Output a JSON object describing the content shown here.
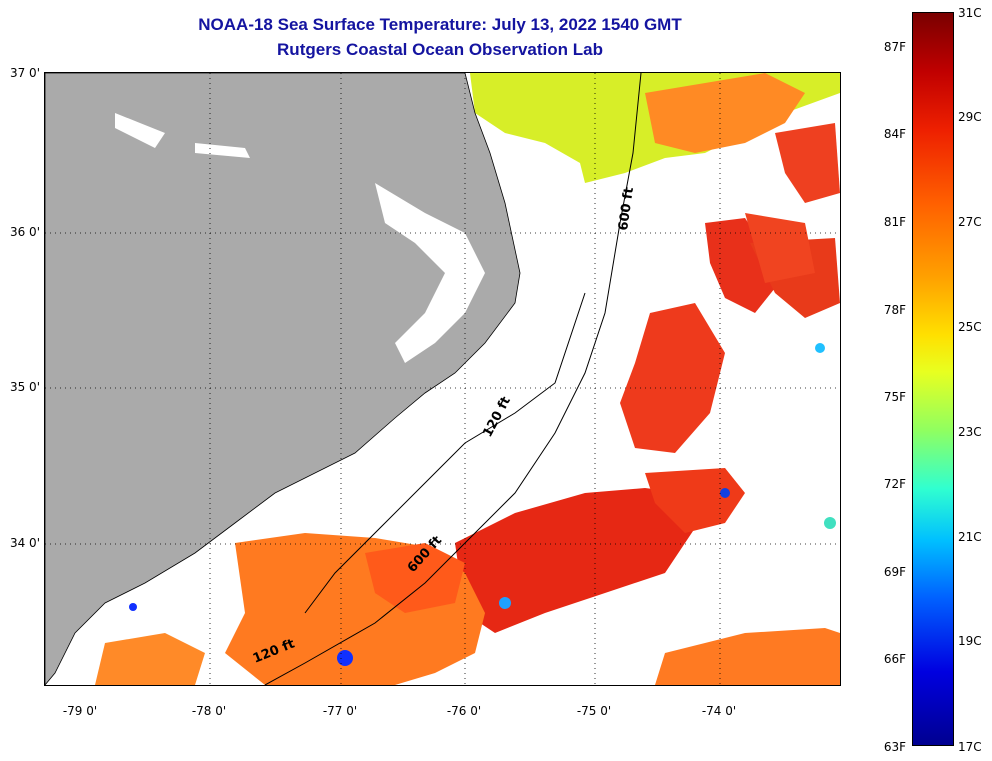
{
  "title_line1": "NOAA-18 Sea Surface Temperature:  July 13, 2022 1540 GMT",
  "title_line2": "Rutgers Coastal Ocean Observation Lab",
  "lat_labels": [
    "37 0'",
    "36 0'",
    "35 0'",
    "34 0'"
  ],
  "lon_labels": [
    "-79 0'",
    "-78 0'",
    "-77 0'",
    "-76 0'",
    "-75 0'",
    "-74 0'"
  ],
  "contours": {
    "c600_north": "600 ft",
    "c120_mid": "120 ft",
    "c600_south": "600 ft",
    "c120_south": "120 ft"
  },
  "colorbar": {
    "fahrenheit": [
      "87F",
      "84F",
      "81F",
      "78F",
      "75F",
      "72F",
      "69F",
      "66F",
      "63F"
    ],
    "celsius": [
      "31C",
      "29C",
      "27C",
      "25C",
      "23C",
      "21C",
      "19C",
      "17C"
    ]
  },
  "colors": {
    "land": "#aaaaaa",
    "title": "#1414a0",
    "warm": "#e82a10",
    "orange": "#ff7a20",
    "green": "#d0f020"
  }
}
